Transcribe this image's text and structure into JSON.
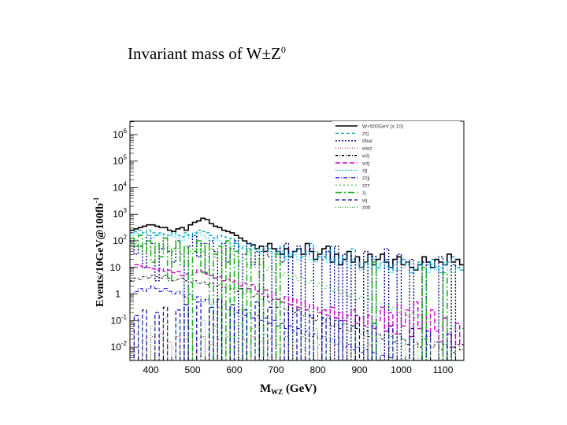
{
  "slide": {
    "title_main": "Invariant mass of W",
    "title_pm": "±",
    "title_z": "Z",
    "title_sup": "0"
  },
  "chart_data": {
    "type": "line",
    "style": "histogram, log-scale y",
    "xlabel": "M",
    "xlabel_sub": "WZ",
    "xlabel_unit": "(GeV)",
    "ylabel": "Events/10GeV@100fb",
    "ylabel_sup": "-1",
    "xlim": [
      350,
      1150
    ],
    "ylim_log10": [
      -2.5,
      6.5
    ],
    "x_ticks": [
      400,
      500,
      600,
      700,
      800,
      900,
      1000,
      1100
    ],
    "y_ticks": [
      {
        "exp": -2,
        "base": "10",
        "sup": "-2"
      },
      {
        "exp": -1,
        "base": "10",
        "sup": "-1"
      },
      {
        "exp": 0,
        "base": "1",
        "sup": ""
      },
      {
        "exp": 1,
        "base": "10",
        "sup": ""
      },
      {
        "exp": 2,
        "base": "10",
        "sup": "2"
      },
      {
        "exp": 3,
        "base": "10",
        "sup": "3"
      },
      {
        "exp": 4,
        "base": "10",
        "sup": "4"
      },
      {
        "exp": 5,
        "base": "10",
        "sup": "5"
      },
      {
        "exp": 6,
        "base": "10",
        "sup": "6"
      }
    ],
    "legend_position": "top-right",
    "series": [
      {
        "name": "W+500GeV (x 10)",
        "color": "#000000",
        "dash": "",
        "width": 1.6,
        "log10_values": [
          2.4,
          2.45,
          2.5,
          2.55,
          2.6,
          2.6,
          2.55,
          2.5,
          2.5,
          2.4,
          2.35,
          2.45,
          2.5,
          2.4,
          2.6,
          2.7,
          2.75,
          2.85,
          2.8,
          2.65,
          2.55,
          2.5,
          2.4,
          2.35,
          2.3,
          2.2,
          2.1,
          2.0,
          1.9,
          1.85,
          1.7,
          1.8,
          1.6,
          1.9,
          1.7,
          1.6,
          1.5,
          1.7,
          1.4,
          1.6,
          1.7,
          1.5,
          1.9,
          1.6,
          1.3,
          1.5,
          1.7,
          1.8,
          1.2,
          1.5,
          1.1,
          1.3,
          1.6,
          1.2,
          1.4,
          1.0,
          1.2,
          1.5,
          1.1,
          1.3,
          1.5,
          1.2,
          1.0,
          1.3,
          1.4,
          1.1,
          1.2,
          1.0,
          0.9,
          1.1,
          1.4,
          1.2,
          1.0,
          1.3,
          1.2,
          1.1,
          1.5,
          1.2,
          1.3,
          1.1
        ]
      },
      {
        "name": "zzj",
        "color": "#00a0c0",
        "dash": "4 3",
        "width": 1.3,
        "log10_values": [
          2.3,
          2.35,
          2.4,
          2.3,
          2.4,
          2.3,
          2.2,
          2.3,
          2.25,
          2.2,
          2.3,
          2.2,
          2.15,
          2.3,
          2.2,
          2.3,
          2.4,
          2.35,
          2.3,
          2.2,
          2.1,
          2.2,
          2.15,
          2.0,
          2.1,
          1.9,
          1.8,
          1.7,
          1.9,
          1.8,
          1.7,
          1.6,
          1.8,
          1.7,
          1.5,
          1.6,
          1.8,
          1.4,
          1.5,
          1.6,
          1.7,
          1.4,
          1.5,
          1.9,
          1.6,
          1.4,
          1.3,
          1.6,
          1.8,
          1.3,
          1.2,
          1.5,
          1.3,
          1.7,
          1.2,
          1.0,
          1.1,
          1.4,
          1.3,
          1.0,
          1.2,
          1.3,
          1.0,
          0.9,
          1.2,
          1.3,
          1.1,
          0.8,
          1.0,
          1.2,
          0.9,
          1.1,
          1.3,
          1.0,
          0.8,
          1.1,
          1.2,
          1.4,
          1.0,
          0.9
        ]
      },
      {
        "name": "ttbar",
        "color": "#000080",
        "dash": "2 2",
        "width": 1.4,
        "log10_values": [
          2.0,
          1.5,
          1.8,
          1.0,
          2.2,
          1.9,
          0.5,
          1.7,
          2.1,
          1.6,
          1.2,
          2.0,
          1.5,
          -2.5,
          1.8,
          2.2,
          1.4,
          1.9,
          0.8,
          2.0,
          1.6,
          -2.5,
          1.9,
          1.2,
          1.7,
          2.0,
          -2.5,
          1.5,
          1.9,
          1.1,
          1.6,
          -2.5,
          1.8,
          1.4,
          -2.5,
          1.7,
          1.2,
          1.9,
          -2.5,
          1.6,
          1.8,
          -2.5,
          1.5,
          1.7,
          -2.5,
          -2.5,
          1.4,
          1.6,
          -2.5,
          1.8,
          -2.5,
          1.5,
          -2.5,
          1.3,
          -2.5,
          -2.5,
          1.6,
          -2.5,
          1.4,
          -2.5,
          -2.5,
          1.7,
          -2.5,
          -2.5,
          1.5,
          -2.5,
          -2.5,
          1.3,
          -2.5,
          -2.5,
          1.2,
          -2.5,
          -2.5,
          -2.5,
          1.4,
          -2.5,
          -2.5,
          1.1,
          -2.5,
          -2.5
        ]
      },
      {
        "name": "wwz",
        "color": "#b03030",
        "dash": "1 2",
        "width": 1.1,
        "log10_values": [
          -2.5,
          -1.5,
          -2.5,
          -1.7,
          -2.5,
          -1.6,
          -2.5,
          -1.5,
          -2.5,
          -1.8,
          -2.5,
          -1.6,
          -2.5,
          -1.7,
          -2.5,
          -1.5,
          -2.5,
          -1.6,
          -2.5,
          -1.9,
          -2.5,
          -1.7,
          -2.5,
          -1.6,
          -2.5,
          -1.8,
          -2.5,
          -1.7,
          -2.5,
          -1.6,
          -2.5,
          -1.8,
          -2.5,
          -1.7,
          -2.5,
          -1.9,
          -2.5,
          -1.6,
          -2.5,
          -1.8,
          -2.5,
          -2.5,
          -1.7,
          -2.5,
          -2.5,
          -1.9,
          -2.5,
          -2.5,
          -1.8,
          -2.5,
          -2.5,
          -2.5,
          -1.9,
          -2.5,
          -2.5,
          -2.5,
          -2.5,
          -1.9,
          -2.5,
          -2.5,
          -2.5,
          -2.5,
          -2.0,
          -2.5,
          -2.5,
          -2.5,
          -2.5,
          -2.5,
          -2.5,
          -2.5,
          -2.5,
          -2.5,
          -2.5,
          -2.5,
          -2.5,
          -2.5,
          -2.5,
          -2.5,
          -2.5,
          -2.5
        ]
      },
      {
        "name": "wzj",
        "color": "#000000",
        "dash": "3 2 1 2",
        "width": 1.0,
        "log10_values": [
          0.5,
          0.6,
          0.55,
          0.65,
          0.6,
          0.7,
          0.65,
          0.6,
          0.7,
          0.6,
          0.5,
          0.55,
          0.6,
          0.5,
          0.45,
          0.5,
          0.4,
          0.45,
          0.35,
          0.4,
          0.3,
          0.35,
          0.25,
          0.3,
          0.2,
          0.1,
          0.2,
          0.0,
          0.1,
          -0.1,
          0.0,
          -0.2,
          -0.1,
          -0.3,
          -0.2,
          -0.5,
          -0.3,
          -0.6,
          -0.4,
          -0.7,
          -0.5,
          -0.8,
          -0.6,
          -0.9,
          -1.0,
          -0.7,
          -1.1,
          -0.9,
          -1.2,
          -1.0,
          -1.3,
          -1.1,
          -1.4,
          -1.2,
          -1.3,
          -1.5,
          -1.4,
          -1.6,
          -1.2,
          -1.5,
          -1.7,
          -1.4,
          -1.6,
          -1.8,
          -1.5,
          -1.7,
          -1.9,
          -1.6,
          -1.8,
          -2.0,
          -1.7,
          -1.9,
          -2.0,
          -1.8,
          -2.1,
          -1.9,
          -2.0,
          -2.2,
          -1.9,
          -2.1
        ]
      },
      {
        "name": "wzj",
        "color": "#cc00cc",
        "dash": "6 3",
        "width": 1.4,
        "log10_values": [
          1.0,
          1.1,
          1.05,
          1.0,
          1.0,
          0.95,
          0.9,
          0.95,
          0.85,
          0.9,
          0.8,
          0.85,
          0.7,
          0.75,
          0.7,
          0.8,
          0.9,
          0.85,
          0.75,
          0.7,
          0.6,
          0.65,
          0.5,
          0.55,
          0.45,
          0.5,
          0.3,
          0.4,
          0.2,
          0.35,
          0.1,
          0.0,
          0.15,
          -0.1,
          0.05,
          -0.2,
          -0.3,
          -0.1,
          -0.4,
          -0.2,
          -0.5,
          -0.3,
          -0.6,
          -0.4,
          -0.5,
          -0.7,
          -0.6,
          -0.8,
          -0.5,
          -0.9,
          -0.7,
          -1.0,
          -0.8,
          -0.6,
          -1.1,
          -0.9,
          -1.2,
          -0.8,
          -1.3,
          -1.0,
          -0.5,
          -1.4,
          -0.7,
          -1.5,
          -0.4,
          -1.2,
          -0.6,
          -1.6,
          -0.3,
          -1.3,
          -0.8,
          -1.7,
          -0.6,
          -1.4,
          -1.8,
          -0.9,
          -1.5,
          -2.0,
          -1.1,
          -1.9
        ]
      },
      {
        "name": "zjj",
        "color": "#00c8d8",
        "dash": "1 1",
        "width": 1.0,
        "log10_values": [
          2.2,
          2.3,
          2.25,
          2.3,
          2.2,
          2.1,
          2.25,
          2.2,
          2.1,
          2.2,
          2.15,
          2.1,
          2.0,
          2.2,
          2.1,
          2.2,
          2.3,
          2.2,
          2.1,
          2.0,
          2.1,
          2.0,
          1.9,
          2.0,
          1.8,
          1.9,
          1.7,
          1.8,
          1.6,
          1.7,
          1.6,
          1.5,
          1.7,
          1.6,
          1.4,
          1.5,
          1.6,
          1.3,
          1.4,
          1.5,
          1.3,
          1.4,
          1.6,
          1.3,
          1.2,
          1.4,
          1.5,
          1.2,
          1.3,
          1.1,
          1.4,
          1.2,
          1.0,
          1.3,
          1.1,
          0.9,
          1.2,
          1.0,
          1.1,
          0.9,
          1.2,
          1.0,
          0.8,
          1.1,
          0.9,
          1.0,
          1.2,
          0.8,
          0.9,
          1.1,
          1.0,
          0.8,
          1.1,
          0.9,
          1.0,
          1.2,
          0.9,
          0.8,
          1.0,
          0.9
        ]
      },
      {
        "name": "zzjj",
        "color": "#0000cc",
        "dash": "5 2 1 2",
        "width": 1.0,
        "log10_values": [
          0.0,
          0.1,
          0.2,
          0.1,
          0.2,
          0.3,
          0.2,
          0.1,
          0.2,
          0.1,
          0.0,
          0.1,
          0.0,
          -0.1,
          0.0,
          -0.2,
          -0.1,
          -0.3,
          -0.2,
          -0.4,
          -0.3,
          -0.5,
          -0.4,
          -0.6,
          -0.5,
          -0.7,
          -0.6,
          -0.8,
          -0.7,
          -0.9,
          -0.8,
          -1.0,
          -0.9,
          -1.1,
          -1.0,
          -1.2,
          -1.1,
          -1.3,
          -1.2,
          -1.4,
          -1.3,
          -1.5,
          -1.4,
          -1.6,
          -1.5,
          -1.7,
          -1.6,
          -1.8,
          -1.7,
          -1.9,
          -1.8,
          -2.0,
          -1.9,
          -2.1,
          -2.0,
          -2.2,
          -2.1,
          -2.5,
          -2.2,
          -2.5,
          -2.3,
          -2.5,
          -2.4,
          -2.5,
          -2.5,
          -2.5,
          -2.5,
          -2.5,
          -2.5,
          -2.5,
          -2.5,
          -2.5,
          -2.5,
          -2.5,
          -2.5,
          -2.5,
          -2.5,
          -2.5,
          -2.5,
          -2.5
        ]
      },
      {
        "name": "zzz",
        "color": "#40c040",
        "dash": "2 3",
        "width": 1.0,
        "log10_values": [
          1.8,
          1.9,
          1.7,
          1.9,
          1.8,
          1.7,
          1.8,
          1.6,
          1.7,
          1.8,
          1.6,
          1.7,
          1.5,
          1.8,
          1.6,
          1.7,
          1.8,
          1.6,
          1.5,
          1.7,
          1.4,
          1.6,
          1.5,
          1.3,
          1.5,
          1.4,
          1.2,
          1.3,
          1.1,
          1.2,
          1.0,
          1.1,
          0.9,
          1.0,
          0.8,
          0.9,
          0.7,
          0.8,
          0.6,
          0.7,
          0.5,
          0.6,
          0.4,
          0.5,
          0.3,
          0.4,
          0.2,
          0.3,
          0.1,
          0.2,
          0.0,
          0.1,
          -0.1,
          0.0,
          -0.2,
          -0.1,
          -0.3,
          -0.2,
          -0.4,
          -0.3,
          -0.5,
          -0.4,
          -0.6,
          -0.5,
          -0.7,
          -0.6,
          -0.8,
          -0.7,
          -0.9,
          -0.8,
          -1.0,
          -0.9,
          -1.1,
          -1.0,
          -1.2,
          -1.1,
          -1.3,
          -1.2,
          -1.4,
          -1.3
        ]
      },
      {
        "name": "zj",
        "color": "#20b020",
        "dash": "8 3 2 3",
        "width": 1.6,
        "log10_values": [
          2.1,
          1.8,
          2.2,
          1.6,
          2.0,
          1.2,
          1.9,
          1.4,
          2.1,
          0.5,
          1.7,
          2.0,
          1.1,
          1.8,
          -2.5,
          1.6,
          2.0,
          0.8,
          1.9,
          -2.5,
          1.5,
          1.8,
          -2.5,
          2.0,
          -2.5,
          1.6,
          0.2,
          -2.5,
          1.7,
          -2.5,
          -2.5,
          1.3,
          -2.5,
          -2.5,
          -2.5,
          1.5,
          -2.5,
          -2.5,
          -2.5,
          -2.5,
          -2.5,
          -2.5,
          -2.5,
          -2.5,
          -2.5,
          -2.5,
          -2.5,
          -2.5,
          -2.5,
          -2.5,
          -2.5,
          -2.5,
          -2.5,
          -2.5,
          -2.5,
          -2.5,
          -2.5,
          -2.5,
          1.2,
          -2.5,
          -2.5,
          -2.5,
          -2.5,
          -2.5,
          -2.5,
          -2.5,
          -2.5,
          -2.5,
          -2.5,
          -2.5,
          1.0,
          -2.5,
          -2.5,
          -2.5,
          -2.5,
          0.8,
          -2.5,
          -2.5,
          -2.5,
          -2.5
        ]
      },
      {
        "name": "wj",
        "color": "#0000aa",
        "dash": "5 3",
        "width": 1.2,
        "log10_values": [
          -2.5,
          -0.8,
          -2.5,
          -0.6,
          -2.5,
          -2.5,
          -0.7,
          -2.5,
          -0.5,
          -2.5,
          -2.5,
          -0.6,
          -2.5,
          -0.4,
          -2.5,
          -2.5,
          -0.3,
          -2.5,
          -2.5,
          -0.5,
          -2.5,
          -0.2,
          -2.5,
          -2.5,
          -0.4,
          -2.5,
          -2.5,
          -0.6,
          -2.5,
          -2.5,
          -0.3,
          -2.5,
          -2.5,
          -0.5,
          -2.5,
          -2.5,
          -2.5,
          -0.7,
          -2.5,
          -2.5,
          -0.6,
          -2.5,
          -2.5,
          -0.8,
          -2.5,
          -2.5,
          -0.9,
          -2.5,
          -2.5,
          -2.5,
          -1.0,
          -2.5,
          -2.5,
          -2.5,
          -0.8,
          -2.5,
          -2.5,
          -2.5,
          -1.1,
          -2.5,
          -2.5,
          -2.5,
          -1.2,
          -2.5,
          -2.5,
          -2.5,
          -2.5,
          -1.3,
          -2.5,
          -2.5,
          -2.5,
          -1.4,
          -2.5,
          -2.5,
          -2.5,
          -2.5,
          -1.5,
          -2.5,
          -2.5,
          -2.5
        ]
      },
      {
        "name": "zbb",
        "color": "#30a030",
        "dash": "1 2",
        "width": 1.0,
        "log10_values": [
          -2.5,
          -2.5,
          -1.0,
          -2.5,
          -2.5,
          -1.2,
          -2.5,
          -2.5,
          -0.9,
          -2.5,
          -2.5,
          -1.1,
          -2.5,
          -2.5,
          -1.3,
          -2.5,
          -2.5,
          -1.0,
          -2.5,
          -2.5,
          -1.2,
          -2.5,
          -2.5,
          -1.4,
          -2.5,
          -2.5,
          -1.1,
          -2.5,
          -2.5,
          -1.3,
          -2.5,
          -2.5,
          -1.5,
          -2.5,
          -2.5,
          -1.2,
          -2.5,
          -2.5,
          -1.4,
          -2.5,
          -2.5,
          -1.6,
          -2.5,
          -2.5,
          -1.3,
          -2.5,
          -2.5,
          -1.5,
          -2.5,
          -2.5,
          -1.7,
          -2.5,
          -2.5,
          -1.4,
          -2.5,
          -2.5,
          -1.6,
          -2.5,
          -2.5,
          -1.8,
          -2.5,
          -2.5,
          -1.5,
          -2.5,
          -2.5,
          -1.7,
          -2.5,
          -2.5,
          -1.9,
          -2.5,
          -2.5,
          -1.6,
          -2.5,
          -2.5,
          -1.8,
          -2.5,
          -2.5,
          -2.0,
          -2.5,
          -2.5
        ]
      }
    ]
  }
}
